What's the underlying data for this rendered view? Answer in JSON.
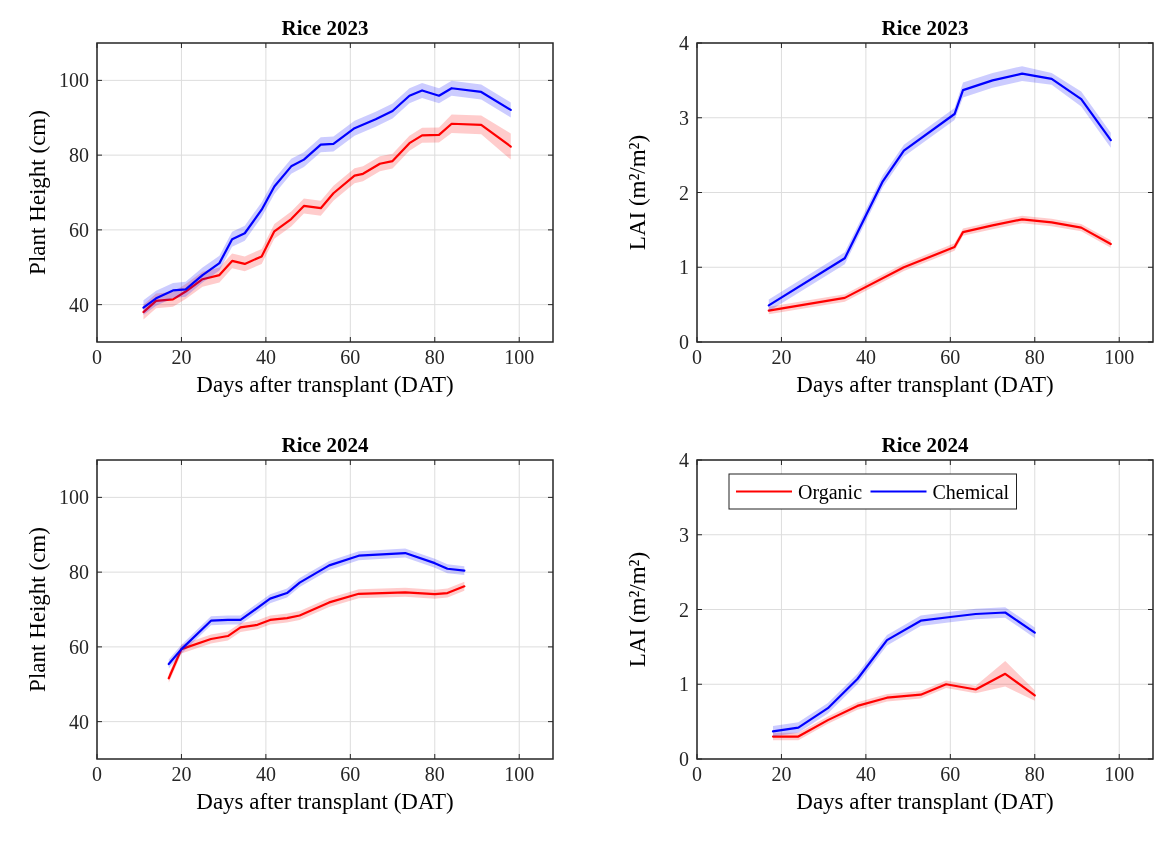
{
  "chart_data": [
    {
      "type": "line",
      "title": "Rice 2023",
      "xlabel": "Days after transplant (DAT)",
      "ylabel": "Plant Height (cm)",
      "xlim": [
        0,
        108
      ],
      "xticks": [
        0,
        20,
        40,
        60,
        80,
        100
      ],
      "ylim": [
        30,
        110
      ],
      "yticks": [
        40,
        60,
        80,
        100
      ],
      "grid": true,
      "series": [
        {
          "color": "#ff0000",
          "x": [
            11,
            14,
            18,
            21,
            25,
            29,
            32,
            35,
            39,
            42,
            46,
            49,
            53,
            56,
            61,
            63,
            67,
            70,
            74,
            77,
            81,
            84,
            91,
            98
          ],
          "values": [
            38,
            41,
            41.4,
            43.5,
            46.8,
            47.9,
            51.7,
            50.9,
            52.9,
            59.6,
            62.9,
            66.4,
            65.8,
            69.8,
            74.5,
            75,
            77.7,
            78.4,
            83.2,
            85.3,
            85.4,
            88.4,
            88.1,
            82.3
          ],
          "lower": [
            36,
            39,
            39.4,
            41.5,
            44.8,
            45.9,
            49.7,
            48.9,
            50.9,
            57.6,
            60.9,
            64.4,
            63.8,
            67.8,
            72.5,
            73,
            75.7,
            76.4,
            81.2,
            83.3,
            83.4,
            85.9,
            85.6,
            78.8
          ],
          "upper": [
            40,
            43,
            43.4,
            45.5,
            48.8,
            49.9,
            53.7,
            52.9,
            54.9,
            61.6,
            64.9,
            68.4,
            67.8,
            71.8,
            76.5,
            77,
            79.7,
            80.4,
            85.2,
            87.3,
            87.4,
            90.9,
            90.6,
            85.8
          ]
        },
        {
          "color": "#0000ff",
          "x": [
            11,
            14,
            18,
            21,
            25,
            29,
            32,
            35,
            39,
            42,
            46,
            49,
            53,
            56,
            61,
            66,
            70,
            74,
            77,
            81,
            84,
            91,
            98
          ],
          "values": [
            39.2,
            41.7,
            43.8,
            44.1,
            47.9,
            51.1,
            57.5,
            59.1,
            65.4,
            71.6,
            77,
            78.8,
            82.8,
            83,
            87.2,
            89.6,
            91.8,
            95.9,
            97.3,
            95.9,
            97.9,
            96.9,
            92.1
          ],
          "lower": [
            37.2,
            39.7,
            41.8,
            42.1,
            45.9,
            49.1,
            55.5,
            57.1,
            63.4,
            69.6,
            75,
            76.8,
            80.8,
            81,
            85.2,
            87.6,
            89.8,
            93.9,
            95.3,
            93.9,
            95.9,
            94.9,
            90.1
          ],
          "upper": [
            41.2,
            43.7,
            45.8,
            46.1,
            49.9,
            53.1,
            59.5,
            61.1,
            67.4,
            73.6,
            79,
            80.8,
            84.8,
            85,
            89.2,
            91.6,
            93.8,
            97.9,
            99.3,
            97.9,
            99.9,
            98.9,
            94.1
          ]
        }
      ]
    },
    {
      "type": "line",
      "title": "Rice 2023",
      "xlabel": "Days after transplant (DAT)",
      "ylabel": "LAI (m²/m²)",
      "xlim": [
        0,
        108
      ],
      "xticks": [
        0,
        20,
        40,
        60,
        80,
        100
      ],
      "ylim": [
        0,
        4
      ],
      "yticks": [
        0,
        1,
        2,
        3,
        4
      ],
      "grid": true,
      "series": [
        {
          "color": "#ff0000",
          "x": [
            17,
            35,
            49,
            61,
            63,
            70,
            77,
            84,
            91,
            98
          ],
          "values": [
            0.42,
            0.59,
            1.0,
            1.27,
            1.47,
            1.56,
            1.64,
            1.6,
            1.53,
            1.31
          ],
          "lower": [
            0.37,
            0.54,
            0.95,
            1.22,
            1.42,
            1.51,
            1.59,
            1.55,
            1.48,
            1.26
          ],
          "upper": [
            0.47,
            0.64,
            1.05,
            1.32,
            1.52,
            1.61,
            1.69,
            1.65,
            1.58,
            1.36
          ]
        },
        {
          "color": "#0000ff",
          "x": [
            17,
            35,
            44,
            49,
            61,
            63,
            70,
            77,
            84,
            91,
            98
          ],
          "values": [
            0.49,
            1.12,
            2.15,
            2.56,
            3.05,
            3.37,
            3.5,
            3.59,
            3.52,
            3.25,
            2.7
          ],
          "lower": [
            0.41,
            1.04,
            2.07,
            2.48,
            2.97,
            3.27,
            3.4,
            3.49,
            3.44,
            3.15,
            2.6
          ],
          "upper": [
            0.57,
            1.2,
            2.23,
            2.64,
            3.13,
            3.47,
            3.6,
            3.69,
            3.6,
            3.35,
            2.8
          ]
        }
      ]
    },
    {
      "type": "line",
      "title": "Rice 2024",
      "xlabel": "Days after transplant (DAT)",
      "ylabel": "Plant Height (cm)",
      "xlim": [
        0,
        108
      ],
      "xticks": [
        0,
        20,
        40,
        60,
        80,
        100
      ],
      "ylim": [
        30,
        110
      ],
      "yticks": [
        40,
        60,
        80,
        100
      ],
      "grid": true,
      "series": [
        {
          "color": "#ff0000",
          "x": [
            17,
            20,
            27,
            31,
            34,
            38,
            41,
            45,
            48,
            55,
            62,
            73,
            80,
            83,
            87
          ],
          "values": [
            51.6,
            59.4,
            62.1,
            62.9,
            65.2,
            65.9,
            67.2,
            67.7,
            68.4,
            71.9,
            74.2,
            74.6,
            74.1,
            74.4,
            76.2
          ],
          "lower": [
            50.4,
            58.2,
            60.9,
            61.7,
            64,
            64.7,
            66,
            66.5,
            67.2,
            70.7,
            73,
            73.4,
            72.9,
            73.2,
            75
          ],
          "upper": [
            52.8,
            60.6,
            63.3,
            64.1,
            66.4,
            67.1,
            68.4,
            68.9,
            69.6,
            73.1,
            75.4,
            75.8,
            75.3,
            75.6,
            77.4
          ]
        },
        {
          "color": "#0000ff",
          "x": [
            17,
            20,
            27,
            31,
            34,
            41,
            45,
            48,
            55,
            62,
            73,
            80,
            83,
            87
          ],
          "values": [
            55.4,
            59.4,
            67,
            67.2,
            67.2,
            72.9,
            74.4,
            77.2,
            81.8,
            84.4,
            85.1,
            82.4,
            80.9,
            80.4
          ],
          "lower": [
            54.2,
            58.2,
            65.8,
            66,
            66,
            71.7,
            73.2,
            76,
            80.6,
            83.2,
            83.9,
            81.2,
            79.7,
            79.2
          ],
          "upper": [
            56.6,
            60.6,
            68.2,
            68.4,
            68.4,
            74.1,
            75.6,
            78.4,
            83,
            85.6,
            86.3,
            83.6,
            82.1,
            81.6
          ]
        }
      ]
    },
    {
      "type": "line",
      "title": "Rice 2024",
      "xlabel": "Days after transplant (DAT)",
      "ylabel": "LAI (m²/m²)",
      "xlim": [
        0,
        108
      ],
      "xticks": [
        0,
        20,
        40,
        60,
        80,
        100
      ],
      "ylim": [
        0,
        4
      ],
      "yticks": [
        0,
        1,
        2,
        3,
        4
      ],
      "grid": true,
      "legend": "top left",
      "series": [
        {
          "name": "Organic",
          "color": "#ff0000",
          "x": [
            18,
            24,
            31,
            38,
            45,
            53,
            59,
            66,
            73,
            80
          ],
          "values": [
            0.3,
            0.3,
            0.52,
            0.71,
            0.82,
            0.86,
            1.0,
            0.93,
            1.14,
            0.85
          ],
          "lower": [
            0.25,
            0.25,
            0.47,
            0.66,
            0.77,
            0.81,
            0.95,
            0.88,
            0.97,
            0.78
          ],
          "upper": [
            0.35,
            0.35,
            0.57,
            0.76,
            0.87,
            0.91,
            1.05,
            0.98,
            1.31,
            0.92
          ]
        },
        {
          "name": "Chemical",
          "color": "#0000ff",
          "x": [
            18,
            24,
            31,
            38,
            45,
            53,
            60,
            66,
            73,
            80
          ],
          "values": [
            0.37,
            0.42,
            0.68,
            1.07,
            1.59,
            1.85,
            1.9,
            1.94,
            1.96,
            1.69
          ],
          "lower": [
            0.3,
            0.35,
            0.61,
            1.0,
            1.52,
            1.78,
            1.83,
            1.87,
            1.89,
            1.62
          ],
          "upper": [
            0.44,
            0.49,
            0.75,
            1.14,
            1.66,
            1.92,
            1.97,
            2.01,
            2.03,
            1.76
          ]
        }
      ]
    }
  ]
}
